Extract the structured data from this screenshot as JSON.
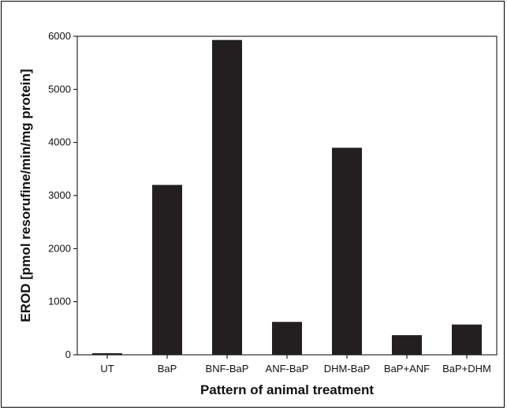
{
  "chart_data": {
    "type": "bar",
    "categories": [
      "UT",
      "BaP",
      "BNF-BaP",
      "ANF-BaP",
      "DHM-BaP",
      "BaP+ANF",
      "BaP+DHM"
    ],
    "values": [
      30,
      3200,
      5930,
      620,
      3900,
      370,
      570
    ],
    "xlabel": "Pattern of animal treatment",
    "ylabel": "EROD [pmol resorufine/min/mg protein]",
    "ylim": [
      0,
      6000
    ],
    "yticks": [
      0,
      1000,
      2000,
      3000,
      4000,
      5000,
      6000
    ],
    "grid": false,
    "bar_color": "#231f20"
  }
}
